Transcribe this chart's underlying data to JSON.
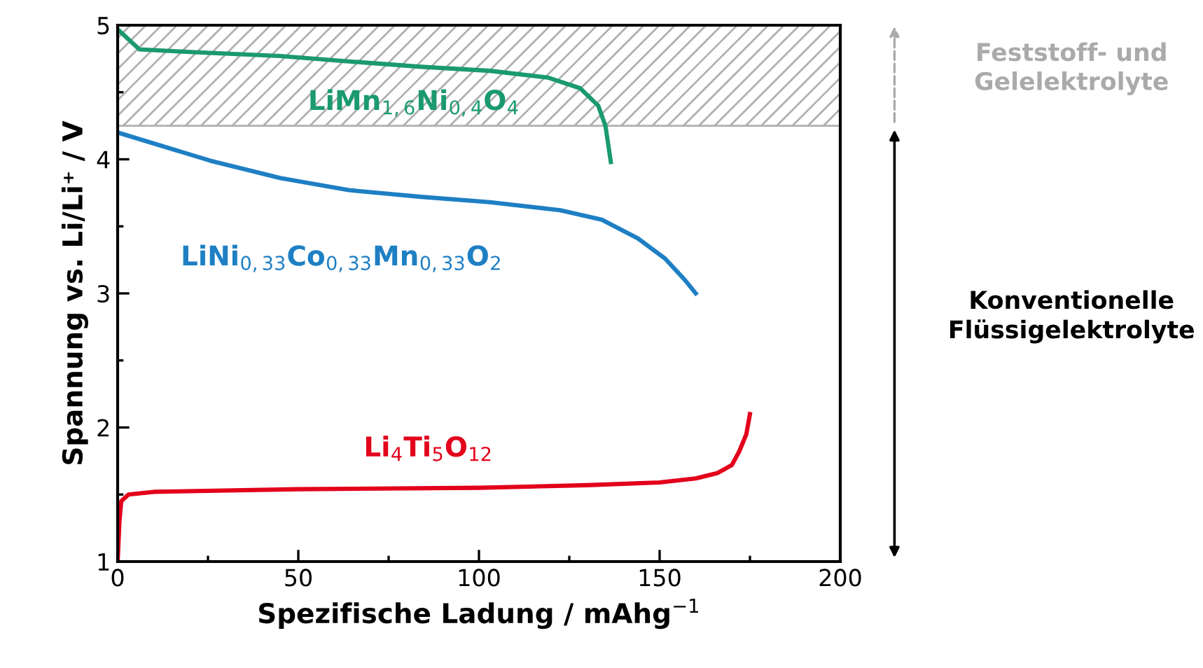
{
  "chart_data": {
    "type": "line",
    "xlabel": "Spezifische Ladung / mAhg$^{−1}$",
    "ylabel": "Spannung vs. Li/Li⁺ / V",
    "xlim": [
      0,
      200
    ],
    "xticks": [
      0,
      50,
      100,
      150,
      200
    ],
    "ylim": [
      1,
      5
    ],
    "yticks": [
      1,
      2,
      3,
      4,
      5
    ],
    "grid": false,
    "legend": false,
    "marker": "none",
    "line_style": "solid",
    "series": [
      {
        "name": "LiMn$_{1,6}$Ni$_{0,4}$O$_{4}$",
        "color": "#1a9a6e",
        "x": [
          0,
          6,
          20,
          45,
          64,
          84,
          103,
          119,
          128,
          133,
          135,
          136.5
        ],
        "values": [
          4.97,
          4.82,
          4.8,
          4.77,
          4.73,
          4.69,
          4.66,
          4.61,
          4.53,
          4.4,
          4.25,
          3.98
        ]
      },
      {
        "name": "LiNi$_{0,33}$Co$_{0,33}$Mn$_{0,33}$O$_{2}$",
        "color": "#1e7fc4",
        "x": [
          0,
          25.6,
          45,
          64,
          84,
          103,
          122.5,
          134,
          144,
          151.5,
          157,
          160
        ],
        "values": [
          4.2,
          3.99,
          3.86,
          3.77,
          3.72,
          3.68,
          3.62,
          3.55,
          3.41,
          3.26,
          3.1,
          3.0
        ]
      },
      {
        "name": "Li$_{4}$Ti$_{5}$O$_{12}$",
        "color": "#e3001b",
        "x": [
          0,
          0.5,
          1,
          3,
          10,
          50,
          100,
          130,
          150,
          160,
          166,
          170,
          172,
          174,
          175
        ],
        "values": [
          1.0,
          1.3,
          1.45,
          1.5,
          1.52,
          1.54,
          1.55,
          1.57,
          1.59,
          1.62,
          1.66,
          1.72,
          1.82,
          1.95,
          2.1
        ]
      }
    ],
    "bands": [
      {
        "axis": "y",
        "from": 4.25,
        "to": 5,
        "color": "#b0b0b0"
      }
    ],
    "annotations": [
      "Feststoff- und\nGelelektrolyte",
      "Konventionelle\nFlüssigelektrolyte"
    ]
  }
}
